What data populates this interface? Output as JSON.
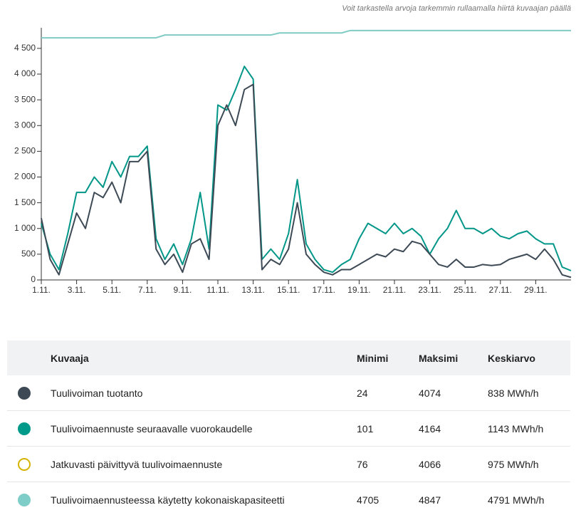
{
  "note": "Voit tarkastella arvoja tarkemmin rullaamalla hiirtä kuvaajan päällä",
  "chart_data": {
    "type": "line",
    "x": [
      1,
      1.5,
      2,
      2.5,
      3,
      3.5,
      4,
      4.5,
      5,
      5.5,
      6,
      6.5,
      7,
      7.5,
      8,
      8.5,
      9,
      9.5,
      10,
      10.5,
      11,
      11.5,
      12,
      12.5,
      13,
      13.5,
      14,
      14.5,
      15,
      15.5,
      16,
      16.5,
      17,
      17.5,
      18,
      18.5,
      19,
      19.5,
      20,
      20.5,
      21,
      21.5,
      22,
      22.5,
      23,
      23.5,
      24,
      24.5,
      25,
      25.5,
      26,
      26.5,
      27,
      27.5,
      28,
      28.5,
      29,
      29.5,
      30,
      30.5,
      31
    ],
    "series": [
      {
        "color": "#80cbc4",
        "values": [
          4705,
          4705,
          4705,
          4705,
          4705,
          4705,
          4705,
          4705,
          4705,
          4705,
          4705,
          4705,
          4705,
          4705,
          4760,
          4760,
          4760,
          4760,
          4760,
          4760,
          4760,
          4760,
          4760,
          4760,
          4760,
          4760,
          4760,
          4800,
          4800,
          4800,
          4800,
          4800,
          4800,
          4800,
          4800,
          4847,
          4847,
          4847,
          4847,
          4847,
          4847,
          4847,
          4847,
          4847,
          4847,
          4847,
          4847,
          4847,
          4847,
          4847,
          4847,
          4847,
          4847,
          4847,
          4847,
          4847,
          4847,
          4847,
          4847,
          4847,
          4847
        ]
      },
      {
        "color": "#009688",
        "values": [
          1100,
          500,
          200,
          900,
          1700,
          1700,
          2000,
          1800,
          2300,
          2000,
          2400,
          2400,
          2600,
          800,
          400,
          700,
          300,
          800,
          1700,
          600,
          3400,
          3300,
          3700,
          4150,
          3900,
          400,
          600,
          400,
          900,
          1950,
          700,
          400,
          200,
          150,
          300,
          400,
          800,
          1100,
          1000,
          900,
          1100,
          900,
          1000,
          850,
          500,
          800,
          1000,
          1350,
          1000,
          1000,
          900,
          1000,
          850,
          800,
          900,
          950,
          800,
          700,
          700,
          250,
          180
        ]
      },
      {
        "color": "#3d4a55",
        "values": [
          1200,
          400,
          100,
          700,
          1300,
          1000,
          1700,
          1600,
          1900,
          1500,
          2300,
          2300,
          2500,
          600,
          300,
          500,
          150,
          700,
          800,
          400,
          3000,
          3400,
          3000,
          3700,
          3800,
          200,
          400,
          300,
          600,
          1500,
          500,
          300,
          150,
          100,
          200,
          200,
          300,
          400,
          500,
          450,
          600,
          550,
          750,
          700,
          500,
          300,
          250,
          400,
          250,
          250,
          300,
          280,
          300,
          400,
          450,
          500,
          400,
          600,
          400,
          100,
          50
        ]
      }
    ],
    "xlim": [
      1,
      31
    ],
    "xticks": [
      {
        "value": 1,
        "label": "1.11."
      },
      {
        "value": 3,
        "label": "3.11."
      },
      {
        "value": 5,
        "label": "5.11."
      },
      {
        "value": 7,
        "label": "7.11."
      },
      {
        "value": 9,
        "label": "9.11."
      },
      {
        "value": 11,
        "label": "11.11."
      },
      {
        "value": 13,
        "label": "13.11."
      },
      {
        "value": 15,
        "label": "15.11."
      },
      {
        "value": 17,
        "label": "17.11."
      },
      {
        "value": 19,
        "label": "19.11."
      },
      {
        "value": 21,
        "label": "21.11."
      },
      {
        "value": 23,
        "label": "23.11."
      },
      {
        "value": 25,
        "label": "25.11."
      },
      {
        "value": 27,
        "label": "27.11."
      },
      {
        "value": 29,
        "label": "29.11."
      }
    ],
    "ylim": [
      0,
      4900
    ],
    "yticks": [
      0,
      500,
      {
        "value": 1000,
        "label": "1 000"
      },
      {
        "value": 1500,
        "label": "1 500"
      },
      {
        "value": 2000,
        "label": "2 000"
      },
      {
        "value": 2500,
        "label": "2 500"
      },
      {
        "value": 3000,
        "label": "3 000"
      },
      {
        "value": 3500,
        "label": "3 500"
      },
      {
        "value": 4000,
        "label": "4 000"
      },
      {
        "value": 4500,
        "label": "4 500"
      }
    ]
  },
  "table": {
    "header": [
      "Kuvaaja",
      "Minimi",
      "Maksimi",
      "Keskiarvo"
    ],
    "rows": [
      {
        "color": "#3d4a55",
        "cells": [
          "Tuulivoiman tuotanto",
          "24",
          "4074",
          "838 MWh/h"
        ]
      },
      {
        "color": "#009a8a",
        "cells": [
          "Tuulivoimaennuste seuraavalle vuorokaudelle",
          "101",
          "4164",
          "1143 MWh/h"
        ]
      },
      {
        "color": "#d4b400",
        "outline": true,
        "cells": [
          "Jatkuvasti päivittyvä tuulivoimaennuste",
          "76",
          "4066",
          "975 MWh/h"
        ]
      },
      {
        "color": "#7fcdc8",
        "cells": [
          "Tuulivoimaennusteessa käytetty kokonaiskapasiteetti",
          "4705",
          "4847",
          "4791 MWh/h"
        ]
      }
    ]
  }
}
